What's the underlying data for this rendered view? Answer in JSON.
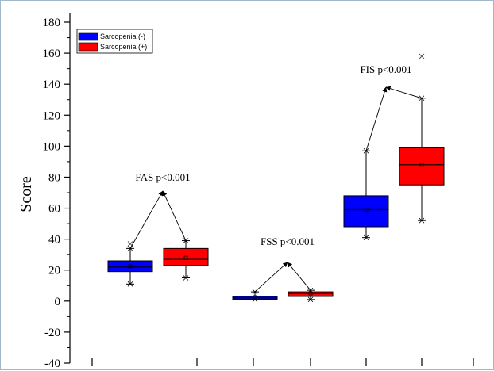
{
  "chart_data": {
    "type": "boxplot",
    "ylabel": "Score",
    "ylim": [
      -40,
      180
    ],
    "yticks": [
      -40,
      -20,
      0,
      20,
      40,
      60,
      80,
      100,
      120,
      140,
      160,
      180
    ],
    "grid": false,
    "legend": {
      "placement": "top-left",
      "entries": [
        {
          "name": "Sarcopenia (-)",
          "color": "#0000ff"
        },
        {
          "name": "Sarcopenia (+)",
          "color": "#ff0000"
        }
      ]
    },
    "boxes": [
      {
        "group": "FAS",
        "series": "Sarcopenia (-)",
        "color": "#0000ff",
        "whisker_low": 11,
        "q1": 19,
        "median": 22,
        "q3": 26,
        "whisker_high": 34,
        "mean": 22.5,
        "outliers": [
          37
        ]
      },
      {
        "group": "FAS",
        "series": "Sarcopenia (+)",
        "color": "#ff0000",
        "whisker_low": 15,
        "q1": 23,
        "median": 27,
        "q3": 34,
        "whisker_high": 39,
        "mean": 28,
        "outliers": []
      },
      {
        "group": "FSS",
        "series": "Sarcopenia (-)",
        "color": "#0000ff",
        "whisker_low": 1,
        "q1": 1,
        "median": 2,
        "q3": 3,
        "whisker_high": 6,
        "mean": 2.5,
        "outliers": []
      },
      {
        "group": "FSS",
        "series": "Sarcopenia (+)",
        "color": "#ff0000",
        "whisker_low": 1,
        "q1": 3,
        "median": 5,
        "q3": 6,
        "whisker_high": 7,
        "mean": 5,
        "outliers": []
      },
      {
        "group": "FIS",
        "series": "Sarcopenia (-)",
        "color": "#0000ff",
        "whisker_low": 41,
        "q1": 48,
        "median": 59,
        "q3": 68,
        "whisker_high": 97,
        "mean": 59,
        "outliers": []
      },
      {
        "group": "FIS",
        "series": "Sarcopenia (+)",
        "color": "#ff0000",
        "whisker_low": 52,
        "q1": 75,
        "median": 88,
        "q3": 99,
        "whisker_high": 131,
        "mean": 88,
        "outliers": [
          158
        ]
      }
    ],
    "annotations": [
      {
        "text": "FAS p<0.001",
        "group": "FAS",
        "y": 71
      },
      {
        "text": "FSS p<0.001",
        "group": "FSS",
        "y": 25
      },
      {
        "text": "FIS p<0.001",
        "group": "FIS",
        "y": 138
      }
    ]
  }
}
